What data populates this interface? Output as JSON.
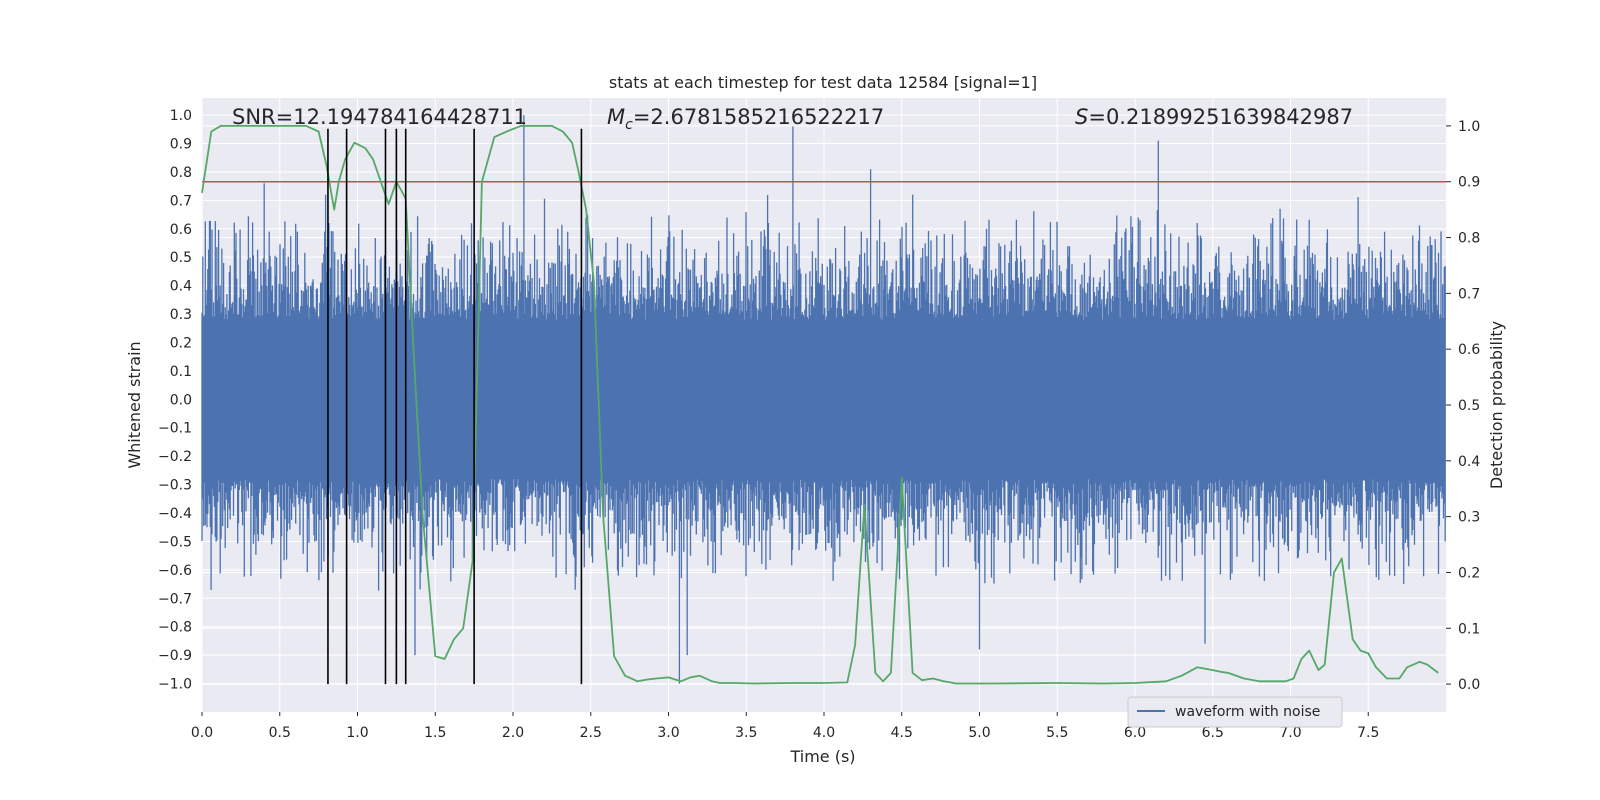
{
  "chart_data": {
    "type": "line",
    "title": "stats at each timestep for test data 12584 [signal=1]",
    "xlabel": "Time (s)",
    "ylabel_left": "Whitened strain",
    "ylabel_right": "Detection probability",
    "xlim": [
      0.0,
      8.0
    ],
    "ylim_left": [
      -1.1,
      1.06
    ],
    "ylim_right": [
      -0.05,
      1.05
    ],
    "xticks": [
      "0.0",
      "0.5",
      "1.0",
      "1.5",
      "2.0",
      "2.5",
      "3.0",
      "3.5",
      "4.0",
      "4.5",
      "5.0",
      "5.5",
      "6.0",
      "6.5",
      "7.0",
      "7.5"
    ],
    "yticks_left": [
      "1.0",
      "0.9",
      "0.8",
      "0.7",
      "0.6",
      "0.5",
      "0.4",
      "0.3",
      "0.2",
      "0.1",
      "0.0",
      "-0.1",
      "-0.2",
      "-0.3",
      "-0.4",
      "-0.5",
      "-0.6",
      "-0.7",
      "-0.8",
      "-0.9",
      "-1.0"
    ],
    "yticks_right": [
      "1.0",
      "0.9",
      "0.8",
      "0.7",
      "0.6",
      "0.5",
      "0.4",
      "0.3",
      "0.2",
      "0.1",
      "0.0"
    ],
    "grid": true,
    "legend": {
      "entries": [
        "waveform with noise"
      ],
      "placement": "lower-right"
    },
    "annotations": {
      "snr": "SNR=12.194784164428711",
      "mc_symbol": "M",
      "mc_sub": "c",
      "mc_value": "=2.6781585216522217",
      "s_symbol": "S",
      "s_value": "=0.21899251639842987"
    },
    "colors": {
      "waveform": "#4c72b0",
      "probability": "#55a868",
      "threshold": "#c44e52",
      "markers": "#000000",
      "background": "#eaeaf2",
      "grid": "#ffffff"
    },
    "threshold": 0.9,
    "markers_x": [
      0.81,
      0.93,
      1.18,
      1.25,
      1.31,
      1.75,
      2.44
    ],
    "waveform": {
      "name": "waveform with noise",
      "n_segments": 1500,
      "max_spikes": [
        {
          "x": 2.07,
          "y": 1.0
        },
        {
          "x": 3.8,
          "y": 0.96
        },
        {
          "x": 6.15,
          "y": 0.91
        },
        {
          "x": 4.3,
          "y": 0.81
        },
        {
          "x": 0.4,
          "y": 0.76
        }
      ],
      "min_spikes": [
        {
          "x": 3.07,
          "y": -1.0
        },
        {
          "x": 3.12,
          "y": -0.9
        },
        {
          "x": 1.37,
          "y": -0.9
        },
        {
          "x": 5.0,
          "y": -0.88
        },
        {
          "x": 6.45,
          "y": -0.86
        }
      ]
    },
    "probability": {
      "name": "detection probability",
      "x": [
        0.0,
        0.06,
        0.12,
        0.2,
        0.3,
        0.4,
        0.5,
        0.6,
        0.67,
        0.75,
        0.8,
        0.85,
        0.88,
        0.92,
        0.98,
        1.05,
        1.1,
        1.15,
        1.2,
        1.25,
        1.31,
        1.36,
        1.42,
        1.5,
        1.56,
        1.62,
        1.68,
        1.74,
        1.8,
        1.88,
        1.96,
        2.05,
        2.15,
        2.25,
        2.32,
        2.38,
        2.42,
        2.47,
        2.52,
        2.58,
        2.65,
        2.72,
        2.8,
        2.86,
        2.92,
        3.0,
        3.08,
        3.14,
        3.2,
        3.28,
        3.33,
        3.42,
        3.55,
        3.8,
        4.0,
        4.15,
        4.2,
        4.26,
        4.33,
        4.38,
        4.43,
        4.5,
        4.57,
        4.63,
        4.7,
        4.77,
        4.85,
        4.95,
        5.1,
        5.5,
        5.8,
        6.0,
        6.2,
        6.3,
        6.4,
        6.5,
        6.55,
        6.6,
        6.7,
        6.8,
        6.9,
        6.97,
        7.02,
        7.07,
        7.12,
        7.18,
        7.22,
        7.28,
        7.33,
        7.4,
        7.45,
        7.5,
        7.55,
        7.62,
        7.7,
        7.75,
        7.83,
        7.88,
        7.95
      ],
      "y": [
        0.88,
        0.99,
        1.0,
        1.0,
        1.0,
        1.0,
        1.0,
        1.0,
        1.0,
        0.99,
        0.93,
        0.85,
        0.9,
        0.94,
        0.97,
        0.96,
        0.94,
        0.9,
        0.86,
        0.9,
        0.87,
        0.6,
        0.3,
        0.05,
        0.045,
        0.08,
        0.1,
        0.22,
        0.9,
        0.98,
        0.99,
        1.0,
        1.0,
        1.0,
        0.99,
        0.97,
        0.92,
        0.85,
        0.72,
        0.3,
        0.05,
        0.015,
        0.005,
        0.008,
        0.01,
        0.012,
        0.005,
        0.012,
        0.015,
        0.005,
        0.002,
        0.002,
        0.001,
        0.002,
        0.002,
        0.003,
        0.07,
        0.32,
        0.02,
        0.005,
        0.02,
        0.37,
        0.02,
        0.007,
        0.01,
        0.005,
        0.001,
        0.001,
        0.001,
        0.002,
        0.001,
        0.002,
        0.005,
        0.015,
        0.03,
        0.025,
        0.022,
        0.02,
        0.01,
        0.005,
        0.005,
        0.005,
        0.01,
        0.045,
        0.06,
        0.025,
        0.035,
        0.2,
        0.225,
        0.08,
        0.06,
        0.055,
        0.03,
        0.01,
        0.01,
        0.03,
        0.04,
        0.035,
        0.02
      ]
    }
  }
}
